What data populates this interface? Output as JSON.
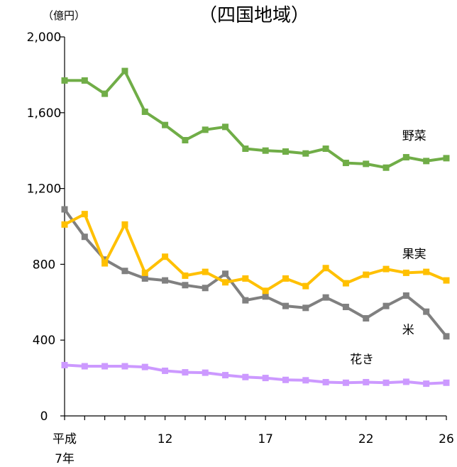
{
  "chart_data": {
    "type": "line",
    "title": "（四国地域）",
    "unit_label": "（億円）",
    "ylim": [
      0,
      2000
    ],
    "yticks": [
      {
        "value": 0,
        "label": "0"
      },
      {
        "value": 400,
        "label": "400"
      },
      {
        "value": 800,
        "label": "800"
      },
      {
        "value": 1200,
        "label": "1,200"
      },
      {
        "value": 1600,
        "label": "1,600"
      },
      {
        "value": 2000,
        "label": "2,000"
      }
    ],
    "x": [
      7,
      8,
      9,
      10,
      11,
      12,
      13,
      14,
      15,
      16,
      17,
      18,
      19,
      20,
      21,
      22,
      23,
      24,
      25,
      26
    ],
    "xticks": [
      {
        "value": 7,
        "label": "平成",
        "label2": "7年"
      },
      {
        "value": 12,
        "label": "12"
      },
      {
        "value": 17,
        "label": "17"
      },
      {
        "value": 22,
        "label": "22"
      },
      {
        "value": 26,
        "label": "26"
      }
    ],
    "grid": false,
    "series": [
      {
        "name": "野菜",
        "color": "#70ad47",
        "values": [
          1770,
          1770,
          1700,
          1820,
          1605,
          1535,
          1455,
          1510,
          1525,
          1410,
          1400,
          1395,
          1385,
          1410,
          1335,
          1330,
          1310,
          1365,
          1345,
          1360
        ],
        "label_at": {
          "x": 24.4,
          "y": 1480
        }
      },
      {
        "name": "果実",
        "color": "#ffc000",
        "values": [
          1010,
          1065,
          805,
          1010,
          755,
          840,
          740,
          760,
          705,
          725,
          660,
          725,
          685,
          780,
          700,
          745,
          775,
          755,
          760,
          715
        ],
        "label_at": {
          "x": 24.4,
          "y": 855
        }
      },
      {
        "name": "米",
        "color": "#808080",
        "values": [
          1090,
          945,
          825,
          765,
          725,
          715,
          690,
          675,
          750,
          610,
          630,
          580,
          570,
          625,
          575,
          515,
          580,
          635,
          550,
          420
        ],
        "label_at": {
          "x": 24.1,
          "y": 455
        }
      },
      {
        "name": "花き",
        "color": "#cc99ff",
        "values": [
          268,
          262,
          262,
          262,
          258,
          238,
          230,
          228,
          215,
          205,
          200,
          190,
          188,
          178,
          175,
          178,
          175,
          180,
          170,
          175
        ],
        "label_at": {
          "x": 21.8,
          "y": 300
        }
      }
    ]
  }
}
